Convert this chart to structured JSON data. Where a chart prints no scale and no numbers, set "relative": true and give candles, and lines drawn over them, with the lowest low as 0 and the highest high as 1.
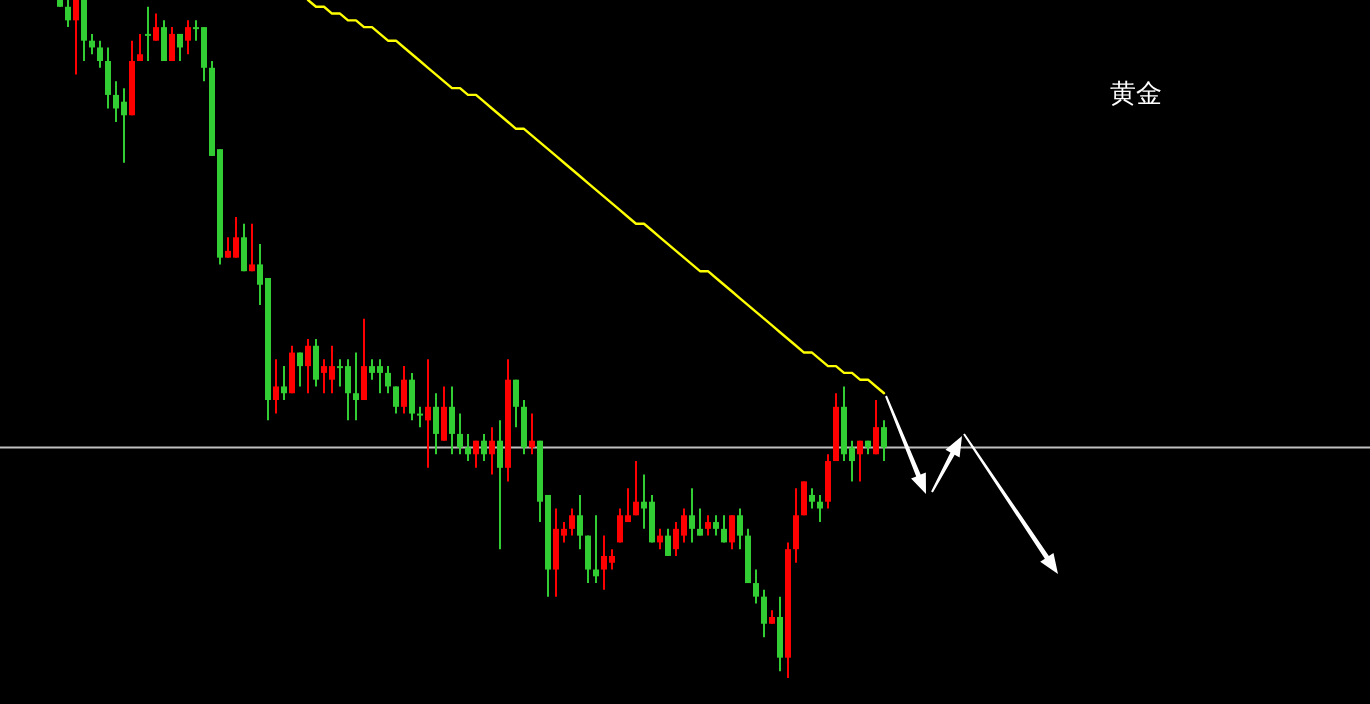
{
  "chart_data": {
    "type": "candlestick",
    "title": "黄金",
    "relative": true,
    "categories": [
      null,
      null,
      null,
      null,
      null,
      null,
      null,
      null,
      null,
      null,
      null,
      null,
      null,
      null,
      null,
      null,
      null,
      null,
      null,
      null,
      null,
      null,
      null,
      null,
      null,
      null,
      null,
      null,
      null,
      null,
      null,
      null,
      null,
      null,
      null,
      null,
      null,
      null,
      null,
      null,
      null,
      null,
      null,
      null,
      null,
      null,
      null,
      null,
      null,
      null,
      null,
      null,
      null,
      null,
      null,
      null,
      null,
      null,
      null,
      null,
      null,
      null,
      null,
      null,
      null,
      null,
      null,
      null,
      null,
      null,
      null,
      null,
      null,
      null,
      null,
      null,
      null,
      null,
      null,
      null,
      null,
      null,
      null,
      null,
      null,
      null,
      null,
      null,
      null,
      null,
      null,
      null,
      null,
      null,
      null,
      null,
      null,
      null,
      null,
      null,
      null,
      null,
      null,
      null
    ],
    "ohlc": [
      [
        1.0,
        1.0,
        0.99,
        0.99
      ],
      [
        0.99,
        1.0,
        0.96,
        0.97
      ],
      [
        0.97,
        1.0,
        0.89,
        1.0
      ],
      [
        1.0,
        1.0,
        0.91,
        0.94
      ],
      [
        0.94,
        0.95,
        0.92,
        0.93
      ],
      [
        0.93,
        0.94,
        0.9,
        0.91
      ],
      [
        0.91,
        0.93,
        0.84,
        0.86
      ],
      [
        0.86,
        0.88,
        0.82,
        0.84
      ],
      [
        0.85,
        0.87,
        0.76,
        0.83
      ],
      [
        0.83,
        0.94,
        0.83,
        0.91
      ],
      [
        0.91,
        0.95,
        0.91,
        0.92
      ],
      [
        0.95,
        0.99,
        0.91,
        0.95
      ],
      [
        0.94,
        0.98,
        0.94,
        0.96
      ],
      [
        0.96,
        0.97,
        0.91,
        0.91
      ],
      [
        0.91,
        0.96,
        0.91,
        0.95
      ],
      [
        0.95,
        0.95,
        0.91,
        0.93
      ],
      [
        0.94,
        0.97,
        0.92,
        0.96
      ],
      [
        0.96,
        0.97,
        0.94,
        0.96
      ],
      [
        0.96,
        0.96,
        0.88,
        0.9
      ],
      [
        0.9,
        0.91,
        0.77,
        0.77
      ],
      [
        0.78,
        0.78,
        0.61,
        0.62
      ],
      [
        0.62,
        0.65,
        0.62,
        0.63
      ],
      [
        0.62,
        0.68,
        0.62,
        0.65
      ],
      [
        0.65,
        0.67,
        0.6,
        0.6
      ],
      [
        0.6,
        0.67,
        0.6,
        0.61
      ],
      [
        0.61,
        0.64,
        0.55,
        0.58
      ],
      [
        0.59,
        0.59,
        0.38,
        0.41
      ],
      [
        0.41,
        0.47,
        0.39,
        0.43
      ],
      [
        0.43,
        0.46,
        0.41,
        0.42
      ],
      [
        0.42,
        0.49,
        0.42,
        0.48
      ],
      [
        0.48,
        0.48,
        0.43,
        0.46
      ],
      [
        0.46,
        0.5,
        0.42,
        0.49
      ],
      [
        0.49,
        0.5,
        0.43,
        0.44
      ],
      [
        0.45,
        0.47,
        0.42,
        0.46
      ],
      [
        0.44,
        0.49,
        0.42,
        0.46
      ],
      [
        0.46,
        0.47,
        0.43,
        0.46
      ],
      [
        0.46,
        0.47,
        0.38,
        0.42
      ],
      [
        0.42,
        0.48,
        0.38,
        0.41
      ],
      [
        0.41,
        0.53,
        0.41,
        0.46
      ],
      [
        0.46,
        0.47,
        0.44,
        0.45
      ],
      [
        0.46,
        0.47,
        0.42,
        0.45
      ],
      [
        0.45,
        0.46,
        0.42,
        0.43
      ],
      [
        0.43,
        0.43,
        0.39,
        0.4
      ],
      [
        0.4,
        0.46,
        0.39,
        0.44
      ],
      [
        0.44,
        0.45,
        0.38,
        0.39
      ],
      [
        0.39,
        0.4,
        0.37,
        0.39
      ],
      [
        0.38,
        0.47,
        0.31,
        0.4
      ],
      [
        0.4,
        0.42,
        0.33,
        0.36
      ],
      [
        0.35,
        0.43,
        0.35,
        0.4
      ],
      [
        0.4,
        0.43,
        0.33,
        0.36
      ],
      [
        0.36,
        0.39,
        0.33,
        0.34
      ],
      [
        0.34,
        0.36,
        0.32,
        0.33
      ],
      [
        0.33,
        0.35,
        0.31,
        0.35
      ],
      [
        0.35,
        0.36,
        0.32,
        0.33
      ],
      [
        0.33,
        0.37,
        0.3,
        0.35
      ],
      [
        0.35,
        0.38,
        0.19,
        0.31
      ],
      [
        0.31,
        0.47,
        0.29,
        0.44
      ],
      [
        0.44,
        0.44,
        0.37,
        0.4
      ],
      [
        0.4,
        0.41,
        0.33,
        0.34
      ],
      [
        0.34,
        0.39,
        0.33,
        0.35
      ],
      [
        0.35,
        0.35,
        0.23,
        0.26
      ],
      [
        0.27,
        0.27,
        0.12,
        0.16
      ],
      [
        0.16,
        0.25,
        0.12,
        0.22
      ],
      [
        0.21,
        0.23,
        0.2,
        0.22
      ],
      [
        0.22,
        0.25,
        0.21,
        0.24
      ],
      [
        0.24,
        0.27,
        0.19,
        0.21
      ],
      [
        0.21,
        0.21,
        0.14,
        0.16
      ],
      [
        0.16,
        0.24,
        0.14,
        0.15
      ],
      [
        0.16,
        0.21,
        0.13,
        0.18
      ],
      [
        0.17,
        0.19,
        0.16,
        0.18
      ],
      [
        0.2,
        0.25,
        0.2,
        0.24
      ],
      [
        0.23,
        0.28,
        0.23,
        0.24
      ],
      [
        0.24,
        0.32,
        0.24,
        0.26
      ],
      [
        0.26,
        0.3,
        0.22,
        0.25
      ],
      [
        0.26,
        0.27,
        0.2,
        0.2
      ],
      [
        0.2,
        0.22,
        0.19,
        0.21
      ],
      [
        0.21,
        0.22,
        0.18,
        0.18
      ],
      [
        0.19,
        0.23,
        0.18,
        0.22
      ],
      [
        0.21,
        0.25,
        0.2,
        0.24
      ],
      [
        0.24,
        0.28,
        0.2,
        0.22
      ],
      [
        0.22,
        0.25,
        0.21,
        0.21
      ],
      [
        0.22,
        0.24,
        0.21,
        0.23
      ],
      [
        0.23,
        0.24,
        0.21,
        0.22
      ],
      [
        0.22,
        0.24,
        0.2,
        0.2
      ],
      [
        0.2,
        0.24,
        0.19,
        0.24
      ],
      [
        0.24,
        0.25,
        0.19,
        0.21
      ],
      [
        0.21,
        0.22,
        0.14,
        0.14
      ],
      [
        0.14,
        0.16,
        0.11,
        0.12
      ],
      [
        0.12,
        0.13,
        0.06,
        0.08
      ],
      [
        0.08,
        0.1,
        0.08,
        0.09
      ],
      [
        0.09,
        0.12,
        0.01,
        0.03
      ],
      [
        0.03,
        0.2,
        0.0,
        0.19
      ],
      [
        0.19,
        0.28,
        0.17,
        0.24
      ],
      [
        0.24,
        0.29,
        0.24,
        0.29
      ],
      [
        0.27,
        0.28,
        0.25,
        0.26
      ],
      [
        0.26,
        0.27,
        0.23,
        0.25
      ],
      [
        0.26,
        0.33,
        0.25,
        0.32
      ],
      [
        0.32,
        0.42,
        0.32,
        0.4
      ],
      [
        0.4,
        0.43,
        0.32,
        0.33
      ],
      [
        0.34,
        0.35,
        0.29,
        0.32
      ],
      [
        0.33,
        0.35,
        0.29,
        0.35
      ],
      [
        0.35,
        0.35,
        0.33,
        0.34
      ],
      [
        0.33,
        0.41,
        0.33,
        0.37
      ],
      [
        0.37,
        0.38,
        0.32,
        0.34
      ]
    ],
    "series": [
      {
        "type": "line",
        "color": "#ffff00",
        "values": [
          null,
          null,
          null,
          null,
          null,
          null,
          null,
          null,
          null,
          null,
          null,
          null,
          null,
          null,
          null,
          null,
          null,
          null,
          null,
          null,
          null,
          null,
          null,
          null,
          null,
          null,
          null,
          null,
          null,
          null,
          null,
          1.0,
          0.99,
          0.99,
          0.98,
          0.98,
          0.97,
          0.97,
          0.96,
          0.96,
          0.95,
          0.94,
          0.94,
          0.93,
          0.92,
          0.91,
          0.9,
          0.89,
          0.88,
          0.87,
          0.87,
          0.86,
          0.86,
          0.85,
          0.84,
          0.83,
          0.82,
          0.81,
          0.81,
          0.8,
          0.79,
          0.78,
          0.77,
          0.76,
          0.75,
          0.74,
          0.73,
          0.72,
          0.71,
          0.7,
          0.69,
          0.68,
          0.67,
          0.67,
          0.66,
          0.65,
          0.64,
          0.63,
          0.62,
          0.61,
          0.6,
          0.6,
          0.59,
          0.58,
          0.57,
          0.56,
          0.55,
          0.54,
          0.53,
          0.52,
          0.51,
          0.5,
          0.49,
          0.48,
          0.48,
          0.47,
          0.46,
          0.46,
          0.45,
          0.45,
          0.44,
          0.44,
          0.43,
          0.42
        ]
      }
    ],
    "ref_lines": [
      {
        "axis": "y",
        "value": 0.34,
        "color": "#c0c0c0"
      }
    ]
  }
}
